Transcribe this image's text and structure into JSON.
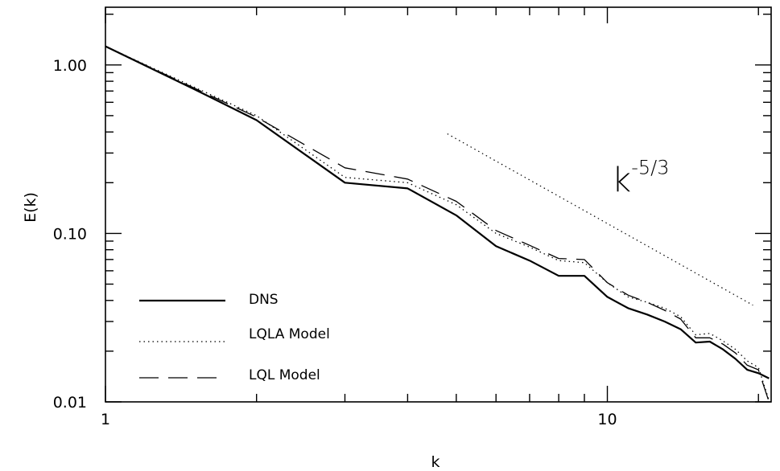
{
  "chart_data": {
    "type": "line",
    "xscale": "log",
    "yscale": "log",
    "xlabel": "k",
    "ylabel": "E(k)",
    "xlim": [
      1,
      21.2
    ],
    "ylim": [
      0.01,
      2.2
    ],
    "xtick_labels": [
      {
        "value": 1,
        "label": "1"
      },
      {
        "value": 10,
        "label": "10"
      }
    ],
    "ytick_labels": [
      {
        "value": 0.01,
        "label": "0.01"
      },
      {
        "value": 0.1,
        "label": "0.10"
      },
      {
        "value": 1,
        "label": "1.00"
      }
    ],
    "series": [
      {
        "name": "DNS",
        "style": "solid",
        "x": [
          1,
          1.5,
          2,
          3,
          4,
          5,
          6,
          7,
          8,
          9,
          10,
          11,
          12,
          13,
          14,
          15,
          16,
          17,
          18,
          19,
          20,
          21
        ],
        "y": [
          1.29,
          0.72,
          0.47,
          0.2,
          0.185,
          0.128,
          0.084,
          0.069,
          0.056,
          0.056,
          0.042,
          0.036,
          0.033,
          0.03,
          0.027,
          0.0225,
          0.0228,
          0.0205,
          0.018,
          0.0155,
          0.0148,
          0.0138
        ]
      },
      {
        "name": "LQLA Model",
        "style": "dotted",
        "x": [
          1,
          1.5,
          2,
          3,
          4,
          5,
          6,
          7,
          8,
          9,
          10,
          11,
          12,
          13,
          14,
          15,
          16,
          17,
          18,
          19,
          20,
          21
        ],
        "y": [
          1.29,
          0.74,
          0.5,
          0.215,
          0.2,
          0.148,
          0.1,
          0.083,
          0.069,
          0.067,
          0.051,
          0.042,
          0.039,
          0.036,
          0.032,
          0.025,
          0.0255,
          0.023,
          0.0205,
          0.0175,
          0.016,
          0.0102
        ]
      },
      {
        "name": "LQL Model",
        "style": "dashed",
        "x": [
          1,
          1.5,
          2,
          3,
          4,
          5,
          6,
          7,
          8,
          9,
          10,
          11,
          12,
          13,
          14,
          15,
          16,
          17,
          18,
          19,
          20,
          21
        ],
        "y": [
          1.29,
          0.73,
          0.49,
          0.245,
          0.21,
          0.155,
          0.104,
          0.085,
          0.071,
          0.07,
          0.051,
          0.043,
          0.039,
          0.035,
          0.031,
          0.024,
          0.024,
          0.022,
          0.0195,
          0.0165,
          0.0155,
          0.01
        ]
      }
    ],
    "reference_line": {
      "style": "dotted",
      "x": [
        4.8,
        19.5
      ],
      "y": [
        0.39,
        0.0375
      ]
    },
    "annotation": {
      "base": "k",
      "exponent": "-5/3",
      "x": 10.2,
      "y": 0.215
    },
    "legend": {
      "position": "bottom-left",
      "entries": [
        "DNS",
        "LQLA Model",
        "LQL Model"
      ]
    }
  }
}
